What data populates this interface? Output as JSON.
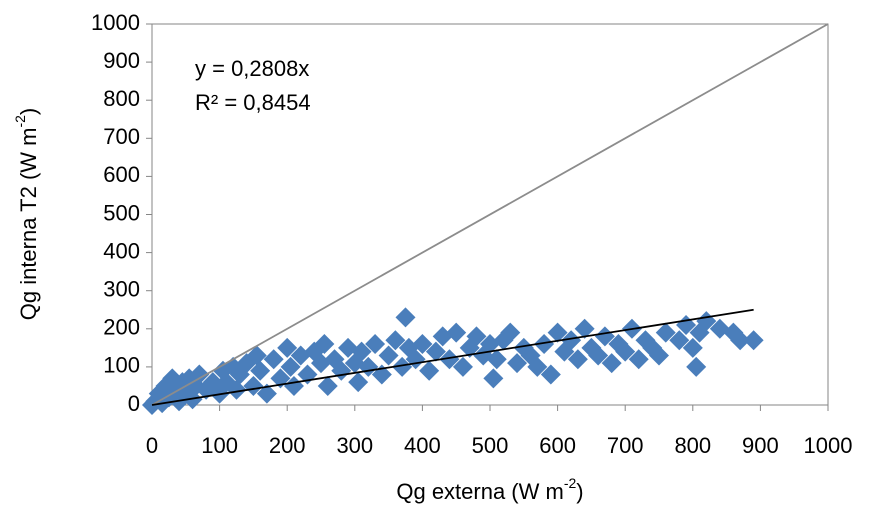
{
  "chart_data": {
    "type": "scatter",
    "color": "#4a7ebb",
    "x_label": {
      "text": "Qg externa  (W m",
      "sup": "-2",
      "end": ")"
    },
    "y_label": {
      "text": "Qg interna T2 (W m",
      "sup": "-2",
      "end": ")"
    },
    "annotations": [
      "y = 0,2808x",
      "R² = 0,8454"
    ],
    "xlim": [
      0,
      1000
    ],
    "ylim": [
      0,
      1000
    ],
    "xticks": [
      0,
      100,
      200,
      300,
      400,
      500,
      600,
      700,
      800,
      900,
      1000
    ],
    "yticks": [
      0,
      100,
      200,
      300,
      400,
      500,
      600,
      700,
      800,
      900,
      1000
    ],
    "lines": [
      {
        "x": [
          0,
          1000
        ],
        "y": [
          0,
          1000
        ],
        "color": "#8c8c8c"
      },
      {
        "x": [
          0,
          890
        ],
        "y": [
          0,
          250
        ],
        "color": "#000000"
      }
    ],
    "x": [
      0,
      5,
      10,
      15,
      20,
      25,
      30,
      35,
      40,
      45,
      50,
      55,
      60,
      65,
      70,
      80,
      90,
      100,
      105,
      110,
      120,
      125,
      130,
      140,
      150,
      155,
      160,
      170,
      180,
      190,
      200,
      205,
      210,
      220,
      230,
      240,
      250,
      255,
      260,
      270,
      280,
      290,
      300,
      305,
      310,
      320,
      330,
      340,
      350,
      360,
      370,
      375,
      380,
      390,
      400,
      410,
      420,
      430,
      440,
      450,
      460,
      470,
      480,
      490,
      500,
      505,
      510,
      520,
      530,
      540,
      550,
      560,
      570,
      580,
      590,
      600,
      610,
      620,
      630,
      640,
      650,
      660,
      670,
      680,
      690,
      700,
      710,
      720,
      730,
      740,
      750,
      760,
      780,
      790,
      800,
      805,
      810,
      820,
      840,
      860,
      870,
      890
    ],
    "values": [
      0,
      10,
      30,
      5,
      50,
      20,
      70,
      40,
      10,
      60,
      30,
      70,
      15,
      50,
      80,
      40,
      60,
      30,
      90,
      60,
      100,
      40,
      80,
      110,
      50,
      130,
      90,
      30,
      120,
      70,
      150,
      100,
      50,
      130,
      80,
      140,
      110,
      160,
      50,
      120,
      90,
      150,
      110,
      60,
      140,
      100,
      160,
      80,
      130,
      170,
      100,
      230,
      150,
      120,
      160,
      90,
      140,
      180,
      120,
      190,
      100,
      150,
      180,
      130,
      160,
      70,
      120,
      170,
      190,
      110,
      150,
      130,
      100,
      160,
      80,
      190,
      140,
      170,
      120,
      200,
      150,
      130,
      180,
      110,
      160,
      140,
      200,
      120,
      170,
      150,
      130,
      190,
      170,
      210,
      150,
      100,
      190,
      220,
      200,
      190,
      170,
      170
    ]
  }
}
